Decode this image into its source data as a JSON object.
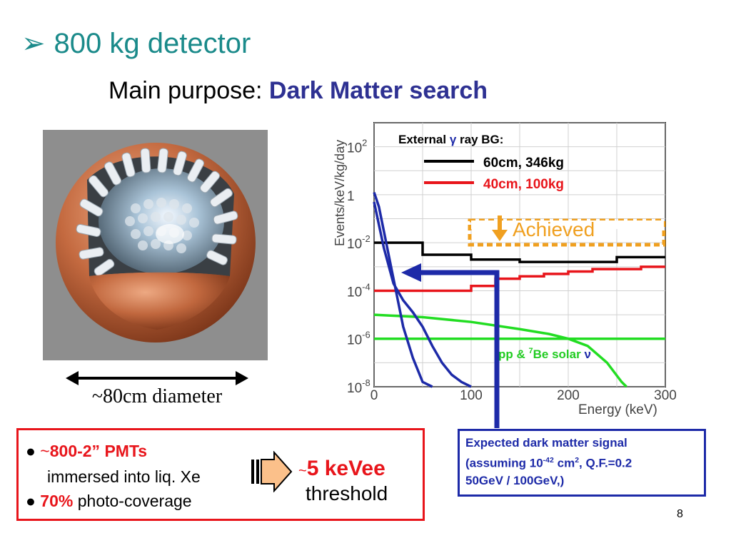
{
  "title": {
    "bullet": "➢",
    "text": "800 kg detector"
  },
  "subtitle": {
    "prefix": "Main purpose: ",
    "accent": "Dark Matter search"
  },
  "detector": {
    "diameter_label": "~80cm diameter"
  },
  "pmt_box": {
    "line1_tilde": "~",
    "line1_value": "800-2” PMTs",
    "line2": "immersed into liq. Xe",
    "line3_value": "70%",
    "line3_text": " photo-coverage"
  },
  "threshold": {
    "tilde": "~",
    "value": "5 keVee",
    "label": "threshold"
  },
  "signal_box": {
    "line1": "Expected dark matter signal",
    "line2_a": "(assuming 10",
    "line2_sup": "-42",
    "line2_b": " cm",
    "line2_sup2": "2",
    "line2_c": ", Q.F.=0.2",
    "line3": "50GeV / 100GeV,)"
  },
  "page_number": "8",
  "colors": {
    "title": "#1a8a8a",
    "accent": "#2e3192",
    "red": "#e8151b",
    "blue": "#1d2aa8",
    "green": "#22dd22",
    "orange": "#f0a020"
  },
  "chart_data": {
    "type": "line",
    "ylabel": "Events/keV/kg/day",
    "xlabel": "Energy (keV)",
    "xlim": [
      0,
      300
    ],
    "ylim_log10": [
      -8,
      3
    ],
    "x_ticks": [
      "0",
      "100",
      "200",
      "300"
    ],
    "y_ticks": [
      {
        "exp": 2,
        "label": "10",
        "sup": "2"
      },
      {
        "exp": 0,
        "label": "1",
        "sup": ""
      },
      {
        "exp": -2,
        "label": "10",
        "sup": "-2"
      },
      {
        "exp": -4,
        "label": "10",
        "sup": "-4"
      },
      {
        "exp": -6,
        "label": "10",
        "sup": "-6"
      },
      {
        "exp": -8,
        "label": "10",
        "sup": "-8"
      }
    ],
    "grid": true,
    "legend": {
      "title_a": "External ",
      "title_gamma": "γ",
      "title_b": " ray BG:",
      "entries": [
        {
          "label": "60cm, 346kg",
          "color": "#000000"
        },
        {
          "label": "40cm, 100kg",
          "color": "#e8151b"
        }
      ]
    },
    "series": [
      {
        "name": "60cm, 346kg",
        "color": "#000000",
        "step": true,
        "x": [
          0,
          50,
          100,
          150,
          250,
          300
        ],
        "log_y": [
          -2.0,
          -2.5,
          -2.7,
          -2.8,
          -2.6,
          -2.6
        ]
      },
      {
        "name": "40cm, 100kg",
        "color": "#e8151b",
        "step": true,
        "x": [
          0,
          50,
          100,
          125,
          150,
          175,
          200,
          225,
          250,
          275,
          300
        ],
        "log_y": [
          -4.0,
          -4.0,
          -3.8,
          -3.5,
          -3.4,
          -3.3,
          -3.2,
          -3.1,
          -3.1,
          -3.0,
          -3.0
        ]
      },
      {
        "color": "#22dd22",
        "x": [
          0,
          50,
          100,
          150,
          180,
          200,
          220,
          240,
          255,
          260
        ],
        "log_y": [
          -5.0,
          -5.1,
          -5.3,
          -5.6,
          -5.8,
          -6.0,
          -6.3,
          -7.0,
          -7.8,
          -8.0
        ]
      },
      {
        "color": "#22dd22",
        "x": [
          0,
          300
        ],
        "log_y": [
          -6.0,
          -6.0
        ]
      },
      {
        "color": "#1d2aa8",
        "x": [
          0,
          5,
          10,
          15,
          20,
          25,
          30,
          40,
          50,
          60
        ],
        "log_y": [
          0.1,
          -0.5,
          -1.5,
          -2.5,
          -3.5,
          -4.5,
          -5.5,
          -6.8,
          -7.8,
          -8.0
        ]
      },
      {
        "color": "#1d2aa8",
        "x": [
          0,
          10,
          20,
          30,
          40,
          50,
          60,
          70,
          80,
          90,
          100
        ],
        "log_y": [
          -0.3,
          -2.2,
          -3.7,
          -4.4,
          -4.9,
          -5.5,
          -6.3,
          -7.0,
          -7.5,
          -7.8,
          -8.0
        ]
      }
    ],
    "annotations": {
      "achieved": "Achieved",
      "achieved_log_y": -2.1,
      "solar_a": "pp & ",
      "solar_sup": "7",
      "solar_b": "Be solar ",
      "solar_nu": "ν"
    }
  }
}
